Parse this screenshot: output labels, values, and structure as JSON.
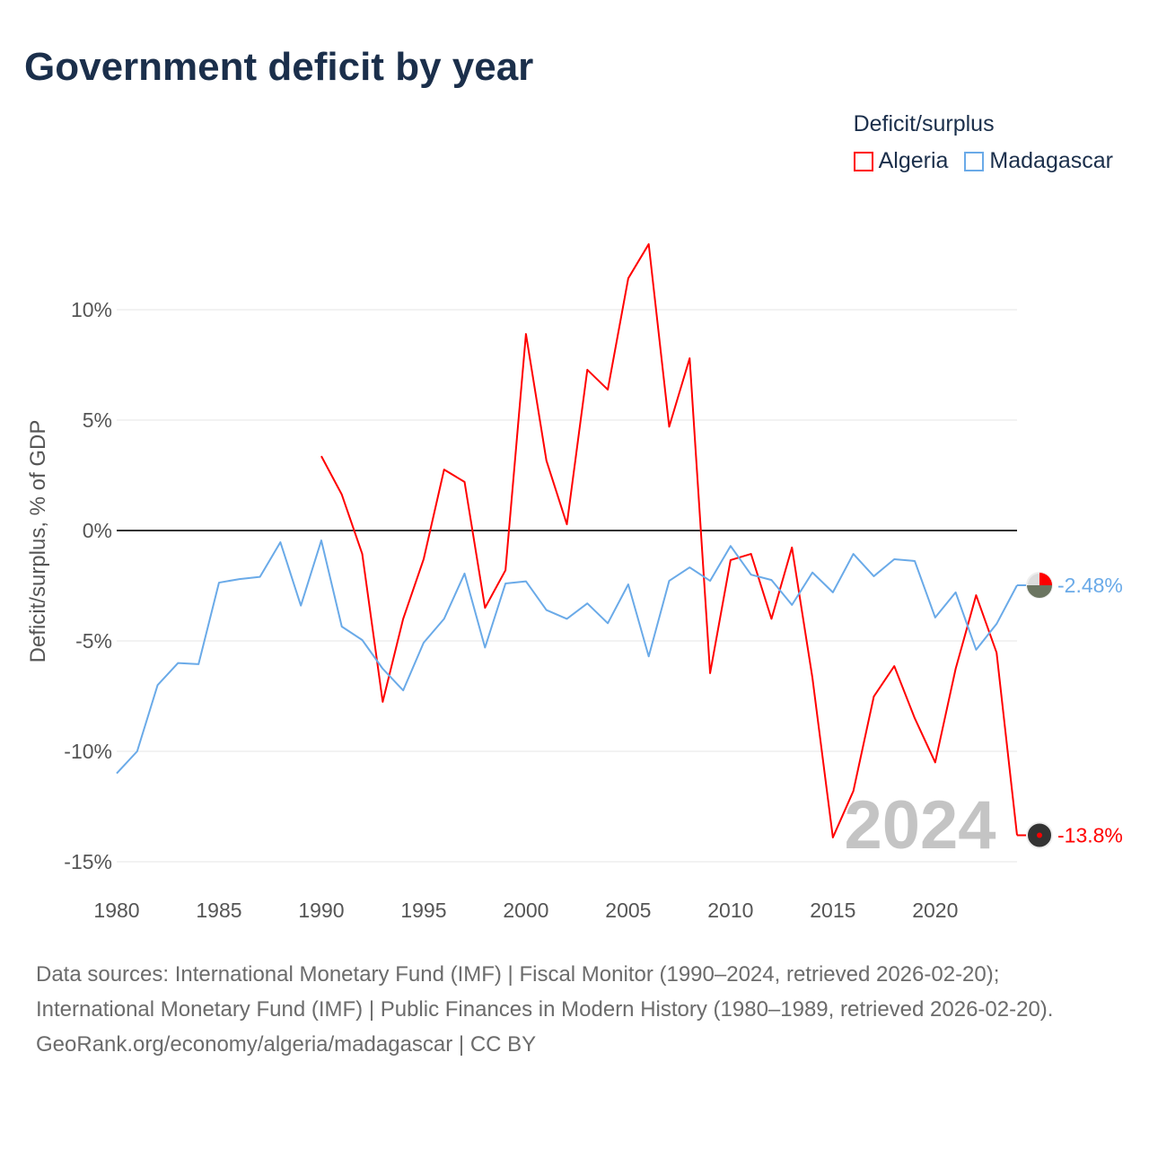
{
  "title": "Government deficit by year",
  "legend": {
    "title": "Deficit/surplus",
    "items": [
      {
        "name": "Algeria",
        "color": "#ff0000"
      },
      {
        "name": "Madagascar",
        "color": "#6aaae8"
      }
    ]
  },
  "watermark_year": "2024",
  "footer": {
    "sources": "Data sources: International Monetary Fund (IMF) | Fiscal Monitor (1990–2024, retrieved 2026-02-20); International Monetary Fund (IMF) | Public Finances in Modern History (1980–1989, retrieved 2026-02-20).",
    "credit": "GeoRank.org/economy/algeria/madagascar | CC BY"
  },
  "chart_data": {
    "type": "line",
    "title": "Government deficit by year",
    "xlabel": "",
    "ylabel": "Deficit/surplus, % of GDP",
    "xlim": [
      1980,
      2024
    ],
    "ylim": [
      -15,
      12
    ],
    "xticks": [
      1980,
      1985,
      1990,
      1995,
      2000,
      2005,
      2010,
      2015,
      2020
    ],
    "yticks": [
      {
        "v": 10,
        "label": "10%"
      },
      {
        "v": 5,
        "label": "5%"
      },
      {
        "v": 0,
        "label": "0%"
      },
      {
        "v": -5,
        "label": "-5%"
      },
      {
        "v": -10,
        "label": "-10%"
      },
      {
        "v": -15,
        "label": "-15%"
      }
    ],
    "grid": true,
    "legend_position": "top-right",
    "series": [
      {
        "name": "Algeria",
        "color": "#ff0000",
        "start": 1990,
        "end_label": "-13.8%",
        "values": [
          3.37,
          1.63,
          -1.06,
          -7.76,
          -4.0,
          -1.3,
          2.76,
          2.2,
          -3.5,
          -1.8,
          8.9,
          3.17,
          0.28,
          7.28,
          6.38,
          11.42,
          12.97,
          4.7,
          7.8,
          -6.46,
          -1.34,
          -1.06,
          -4.0,
          -0.77,
          -6.67,
          -13.9,
          -11.8,
          -7.52,
          -6.14,
          -8.5,
          -10.5,
          -6.26,
          -2.93,
          -5.53,
          -13.8
        ]
      },
      {
        "name": "Madagascar",
        "color": "#6aaae8",
        "start": 1980,
        "end_label": "-2.48%",
        "values": [
          -11.0,
          -10.0,
          -7.0,
          -6.0,
          -6.05,
          -2.36,
          -2.2,
          -2.1,
          -0.53,
          -3.4,
          -0.45,
          -4.35,
          -4.96,
          -6.26,
          -7.24,
          -5.08,
          -4.0,
          -1.95,
          -5.3,
          -2.4,
          -2.3,
          -3.6,
          -4.0,
          -3.3,
          -4.2,
          -2.44,
          -5.7,
          -2.28,
          -1.67,
          -2.28,
          -0.7,
          -2.0,
          -2.24,
          -3.37,
          -1.9,
          -2.8,
          -1.06,
          -2.07,
          -1.3,
          -1.38,
          -3.94,
          -2.8,
          -5.4,
          -4.23,
          -2.48
        ]
      }
    ]
  }
}
